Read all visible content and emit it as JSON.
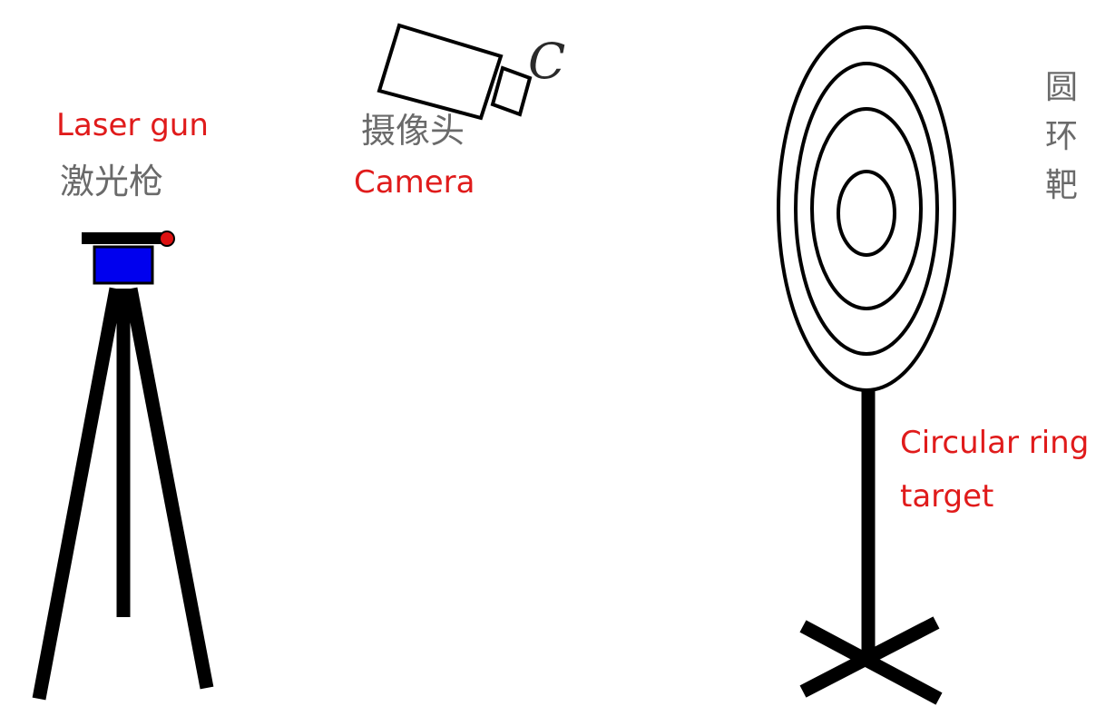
{
  "laser_gun": {
    "label_en": "Laser gun",
    "label_cn": "激光枪"
  },
  "camera": {
    "label_en": "Camera",
    "label_cn": "摄像头",
    "letter": "C"
  },
  "target": {
    "label_en_line1": "Circular ring",
    "label_en_line2": "target",
    "label_cn": "圆环靶"
  },
  "colors": {
    "annotation_red": "#e01b1b",
    "laser_body_blue": "#0000ee",
    "laser_dot_red": "#dd1111",
    "stroke_black": "#000000"
  }
}
